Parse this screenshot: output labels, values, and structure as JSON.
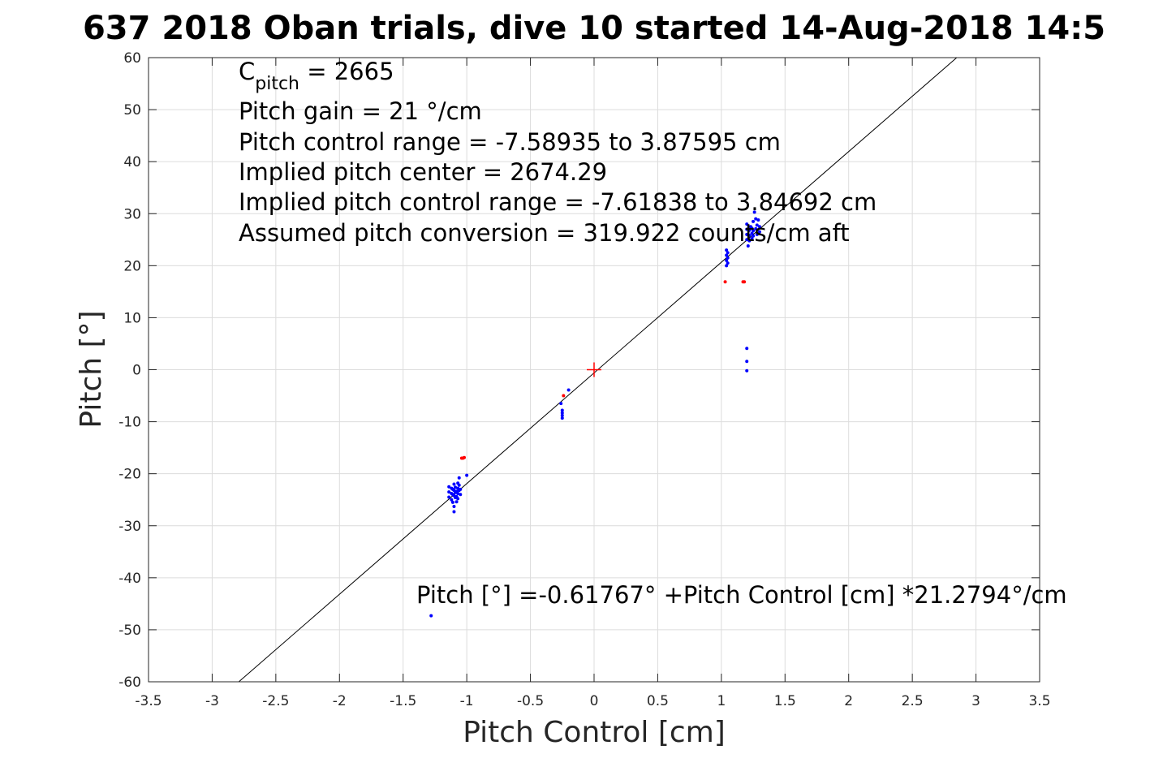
{
  "chart_data": {
    "type": "scatter",
    "title": "637 2018 Oban trials, dive 10 started 14-Aug-2018 14:5",
    "xlabel": "Pitch Control [cm]",
    "ylabel": "Pitch [°]",
    "xlim": [
      -3.5,
      3.5
    ],
    "ylim": [
      -60,
      60
    ],
    "xticks": [
      -3.5,
      -3,
      -2.5,
      -2,
      -1.5,
      -1,
      -0.5,
      0,
      0.5,
      1,
      1.5,
      2,
      2.5,
      3,
      3.5
    ],
    "xtick_labels": [
      "-3.5",
      "-3",
      "-2.5",
      "-2",
      "-1.5",
      "-1",
      "-0.5",
      "0",
      "0.5",
      "1",
      "1.5",
      "2",
      "2.5",
      "3",
      "3.5"
    ],
    "yticks": [
      -60,
      -50,
      -40,
      -30,
      -20,
      -10,
      0,
      10,
      20,
      30,
      40,
      50,
      60
    ],
    "ytick_labels": [
      "-60",
      "-50",
      "-40",
      "-30",
      "-20",
      "-10",
      "0",
      "10",
      "20",
      "30",
      "40",
      "50",
      "60"
    ],
    "grid": true,
    "colors": {
      "used": "#0000ff",
      "excluded": "#ff0000",
      "fit_line": "#000000",
      "center_marker": "#ff0000",
      "grid": "#dcdcdc"
    },
    "series": [
      {
        "color": "#0000ff",
        "points": [
          [
            -1.28,
            -47.3
          ],
          [
            -1.14,
            -22.5
          ],
          [
            -1.14,
            -23.5
          ],
          [
            -1.14,
            -24.5
          ],
          [
            -1.12,
            -22.8
          ],
          [
            -1.12,
            -23.8
          ],
          [
            -1.12,
            -25.0
          ],
          [
            -1.11,
            -23.0
          ],
          [
            -1.11,
            -24.0
          ],
          [
            -1.11,
            -25.5
          ],
          [
            -1.1,
            -22.0
          ],
          [
            -1.1,
            -23.2
          ],
          [
            -1.1,
            -24.2
          ],
          [
            -1.1,
            -26.3
          ],
          [
            -1.1,
            -27.3
          ],
          [
            -1.09,
            -22.6
          ],
          [
            -1.09,
            -23.6
          ],
          [
            -1.09,
            -24.6
          ],
          [
            -1.08,
            -23.4
          ],
          [
            -1.08,
            -24.4
          ],
          [
            -1.08,
            -25.4
          ],
          [
            -1.07,
            -21.8
          ],
          [
            -1.07,
            -22.8
          ],
          [
            -1.07,
            -23.8
          ],
          [
            -1.07,
            -24.8
          ],
          [
            -1.06,
            -20.8
          ],
          [
            -1.06,
            -22.2
          ],
          [
            -1.06,
            -23.2
          ],
          [
            -1.05,
            -23.0
          ],
          [
            -1.05,
            -24.0
          ],
          [
            -1.0,
            -20.3
          ],
          [
            -0.26,
            -6.5
          ],
          [
            -0.25,
            -7.8
          ],
          [
            -0.25,
            -8.3
          ],
          [
            -0.25,
            -8.8
          ],
          [
            -0.25,
            -9.3
          ],
          [
            -0.2,
            -3.9
          ],
          [
            1.04,
            20.0
          ],
          [
            1.04,
            21.0
          ],
          [
            1.04,
            22.0
          ],
          [
            1.04,
            23.0
          ],
          [
            1.05,
            20.5
          ],
          [
            1.05,
            21.5
          ],
          [
            1.05,
            22.5
          ],
          [
            1.2,
            4.1
          ],
          [
            1.2,
            1.6
          ],
          [
            1.2,
            -0.2
          ],
          [
            1.2,
            25.0
          ],
          [
            1.2,
            26.0
          ],
          [
            1.2,
            27.0
          ],
          [
            1.2,
            28.0
          ],
          [
            1.21,
            23.8
          ],
          [
            1.22,
            24.8
          ],
          [
            1.22,
            25.8
          ],
          [
            1.22,
            26.8
          ],
          [
            1.23,
            27.5
          ],
          [
            1.24,
            25.2
          ],
          [
            1.24,
            26.2
          ],
          [
            1.24,
            27.2
          ],
          [
            1.25,
            25.7
          ],
          [
            1.25,
            26.7
          ],
          [
            1.25,
            28.5
          ],
          [
            1.26,
            30.3
          ],
          [
            1.27,
            27.1
          ],
          [
            1.27,
            29.0
          ],
          [
            1.28,
            26.0
          ],
          [
            1.28,
            27.8
          ],
          [
            1.29,
            28.8
          ],
          [
            1.3,
            26.5
          ],
          [
            1.3,
            27.5
          ]
        ]
      },
      {
        "color": "#ff0000",
        "points": [
          [
            -1.04,
            -17.0
          ],
          [
            -1.03,
            -17.0
          ],
          [
            -1.02,
            -16.9
          ],
          [
            -0.24,
            -5.0
          ],
          [
            1.03,
            16.9
          ],
          [
            1.17,
            16.9
          ],
          [
            1.18,
            16.9
          ]
        ]
      }
    ],
    "fit_line": {
      "intercept": -0.61767,
      "slope": 21.2794
    },
    "center_marker": [
      0,
      0
    ],
    "annotations": [
      {
        "main": "C",
        "sub": "pitch",
        "rest": " = 2665"
      },
      {
        "text": "Pitch gain = 21 °/cm"
      },
      {
        "text": "Pitch control range = -7.58935 to 3.87595 cm"
      },
      {
        "text": "Implied pitch center = 2674.29"
      },
      {
        "text": "Implied pitch control range = -7.61838 to 3.84692 cm"
      },
      {
        "text": "Assumed pitch conversion = 319.922 counts/cm aft"
      }
    ],
    "fit_equation": "Pitch [°] =-0.61767° +Pitch Control [cm] *21.2794°/cm"
  }
}
